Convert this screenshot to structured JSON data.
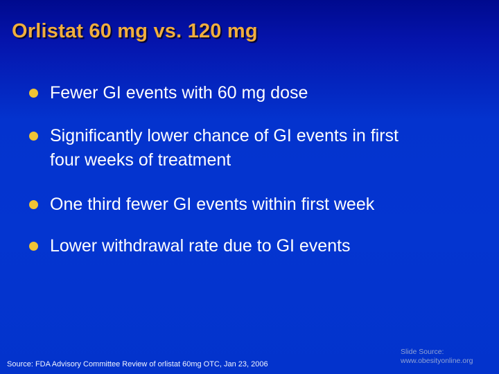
{
  "slide": {
    "title": "Orlistat 60 mg vs. 120 mg",
    "bullets": [
      "Fewer GI events with 60 mg dose",
      "Significantly lower chance of GI events in first four weeks of treatment",
      "One third fewer GI events within first week",
      "Lower withdrawal rate due to GI events"
    ],
    "footer": {
      "source_text": "Source: FDA Advisory Committee Review of orlistat 60mg OTC, Jan 23, 2006",
      "credit_label": "Slide Source:",
      "credit_site": "www.obesityonline.org"
    },
    "colors": {
      "background_top": "#000a8e",
      "background_main": "#0433ce",
      "title_gold": "#f1ae3d",
      "bullet_dot_gold": "#f0c434",
      "body_text": "#ffffff",
      "credit_text": "#8fa2d4"
    }
  }
}
